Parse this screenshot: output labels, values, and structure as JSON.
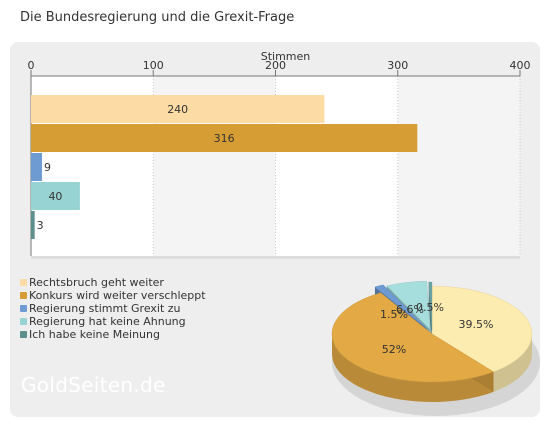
{
  "title": "Die Bundesregierung und die Grexit-Frage",
  "brand": "GoldSeiten.de",
  "chart_data": [
    {
      "type": "bar",
      "orientation": "horizontal",
      "xlabel": "Stimmen",
      "xlim": [
        0,
        400
      ],
      "ticks": [
        0,
        100,
        200,
        300,
        400
      ],
      "axis_position": "top",
      "grid": true,
      "categories": [
        "Rechtsbruch geht weiter",
        "Konkurs wird weiter verschleppt",
        "Regierung stimmt Grexit zu",
        "Regierung hat keine Ahnung",
        "Ich habe keine Meinung"
      ],
      "values": [
        240,
        316,
        9,
        40,
        3
      ],
      "colors": [
        "#fddba4",
        "#d69d34",
        "#6f9bd3",
        "#98d3d3",
        "#5c8e8e"
      ]
    },
    {
      "type": "pie",
      "style": "3d",
      "labels": [
        "Rechtsbruch geht weiter",
        "Konkurs wird weiter verschleppt",
        "Regierung stimmt Grexit zu",
        "Regierung hat keine Ahnung",
        "Ich habe keine Meinung"
      ],
      "values": [
        39.5,
        52,
        1.5,
        6.6,
        0.5
      ],
      "value_labels": [
        "39.5%",
        "52%",
        "1.5%",
        "6.6%",
        "0.5%"
      ],
      "colors": [
        "#fdecb0",
        "#e2a945",
        "#6f9bd3",
        "#a6dede",
        "#6aa4a4"
      ],
      "legend_position": "bottom-left"
    }
  ]
}
